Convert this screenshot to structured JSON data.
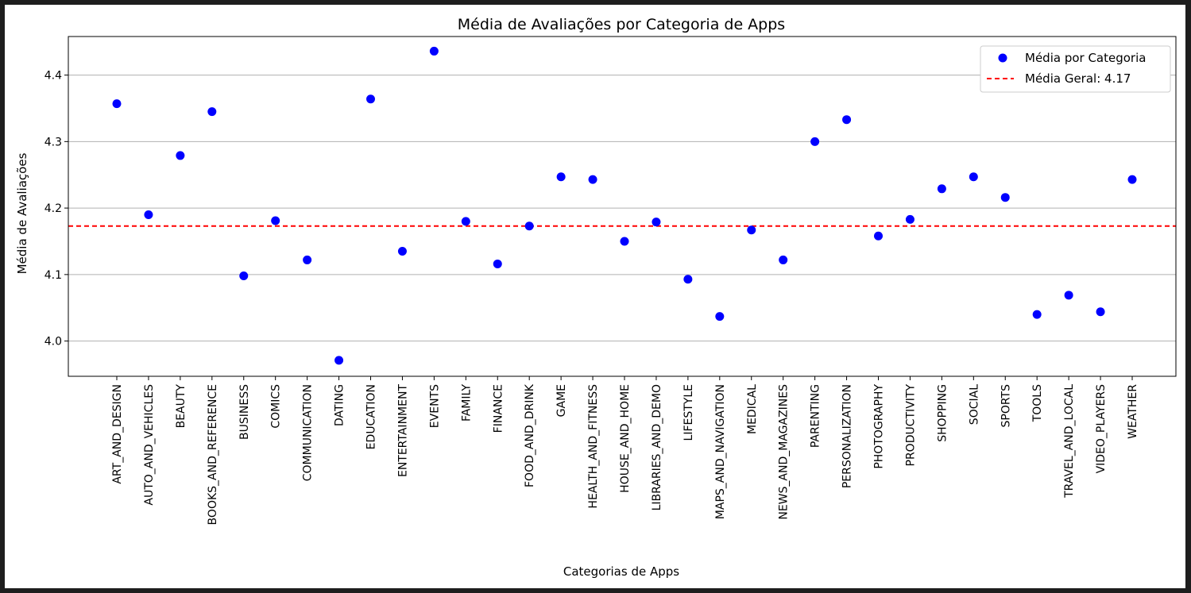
{
  "chart_data": {
    "type": "scatter",
    "title": "Média de Avaliações por Categoria de Apps",
    "xlabel": "Categorias de Apps",
    "ylabel": "Média de Avaliações",
    "ylim": [
      3.947,
      4.458
    ],
    "yticks": [
      "4.0",
      "4.1",
      "4.2",
      "4.3",
      "4.4"
    ],
    "ytick_values": [
      4.0,
      4.1,
      4.2,
      4.3,
      4.4
    ],
    "grid": "horizontal",
    "legend_position": "top-right",
    "categories": [
      "ART_AND_DESIGN",
      "AUTO_AND_VEHICLES",
      "BEAUTY",
      "BOOKS_AND_REFERENCE",
      "BUSINESS",
      "COMICS",
      "COMMUNICATION",
      "DATING",
      "EDUCATION",
      "ENTERTAINMENT",
      "EVENTS",
      "FAMILY",
      "FINANCE",
      "FOOD_AND_DRINK",
      "GAME",
      "HEALTH_AND_FITNESS",
      "HOUSE_AND_HOME",
      "LIBRARIES_AND_DEMO",
      "LIFESTYLE",
      "MAPS_AND_NAVIGATION",
      "MEDICAL",
      "NEWS_AND_MAGAZINES",
      "PARENTING",
      "PERSONALIZATION",
      "PHOTOGRAPHY",
      "PRODUCTIVITY",
      "SHOPPING",
      "SOCIAL",
      "SPORTS",
      "TOOLS",
      "TRAVEL_AND_LOCAL",
      "VIDEO_PLAYERS",
      "WEATHER"
    ],
    "series": [
      {
        "name": "Média por Categoria",
        "color": "#0000ff",
        "values": [
          4.357,
          4.19,
          4.279,
          4.345,
          4.098,
          4.181,
          4.122,
          3.971,
          4.364,
          4.135,
          4.436,
          4.18,
          4.116,
          4.173,
          4.247,
          4.243,
          4.15,
          4.179,
          4.093,
          4.037,
          4.167,
          4.122,
          4.3,
          4.333,
          4.158,
          4.183,
          4.229,
          4.247,
          4.216,
          4.04,
          4.069,
          4.044,
          4.243
        ]
      }
    ],
    "reference_line": {
      "label": "Média Geral: 4.17",
      "value": 4.173,
      "color": "#ff0000",
      "style": "dashed"
    }
  }
}
